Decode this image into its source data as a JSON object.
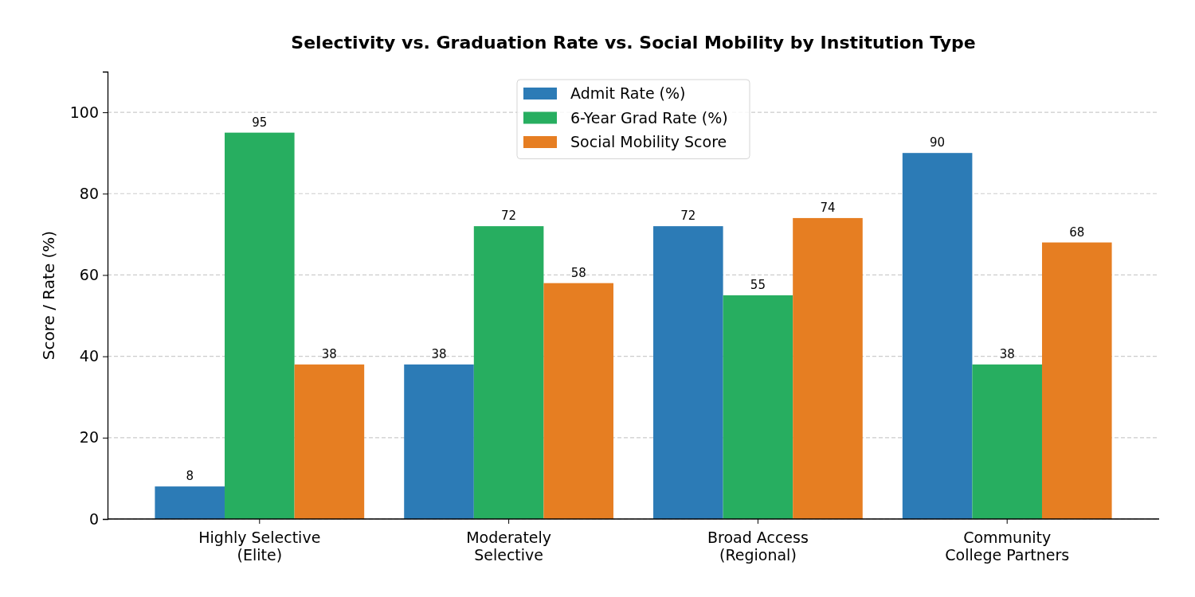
{
  "chart_data": {
    "type": "bar",
    "title": "Selectivity vs. Graduation Rate vs. Social Mobility by Institution Type",
    "ylabel": "Score / Rate (%)",
    "categories": [
      "Highly Selective\n(Elite)",
      "Moderately\nSelective",
      "Broad Access\n(Regional)",
      "Community\nCollege Partners"
    ],
    "series": [
      {
        "name": "Admit Rate (%)",
        "color": "#2c7bb6",
        "values": [
          8,
          38,
          72,
          90
        ]
      },
      {
        "name": "6-Year Grad Rate (%)",
        "color": "#27ae60",
        "values": [
          95,
          72,
          55,
          38
        ]
      },
      {
        "name": "Social Mobility Score",
        "color": "#e67e22",
        "values": [
          38,
          58,
          74,
          68
        ]
      }
    ],
    "ylim": [
      0,
      110
    ],
    "yticks": [
      0,
      20,
      40,
      60,
      80,
      100
    ],
    "grid": "y",
    "legend": "top",
    "data_labels": true
  }
}
